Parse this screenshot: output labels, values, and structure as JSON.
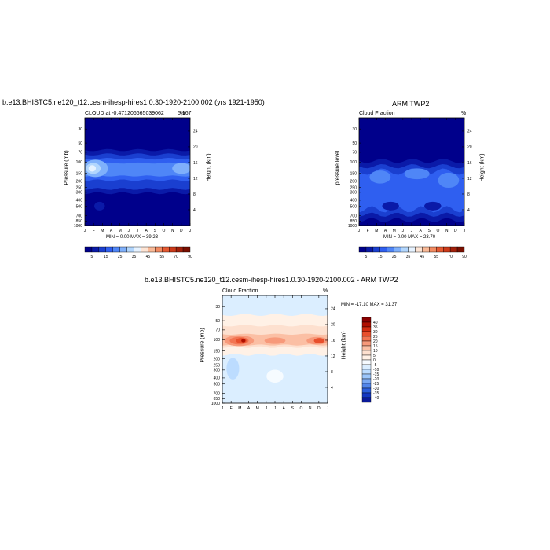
{
  "chart_data": [
    {
      "type": "heatmap",
      "title": "b.e13.BHISTC5.ne120_t12.cesm-ihesp-hires1.0.30-1920-2100.002 (yrs 1921-1950)",
      "left_label": "CLOUD at -0.471206665039062",
      "right_label": "%",
      "right_overlap_label": "5,167",
      "ylabel": "Pressure (mb)",
      "y2label": "Height (km)",
      "stats": "MIN =   0.00 MAX =  39.23",
      "x": [
        "J",
        "F",
        "M",
        "A",
        "M",
        "J",
        "J",
        "A",
        "S",
        "O",
        "N",
        "D",
        "J"
      ],
      "y_ticks": [
        30,
        50,
        70,
        100,
        150,
        200,
        250,
        300,
        400,
        500,
        700,
        850,
        1000
      ],
      "y2_ticks": [
        24,
        20,
        16,
        12,
        8,
        4
      ],
      "ylim": [
        1000,
        20
      ],
      "grid": false,
      "colorbar": "shared-bottom",
      "max": 39.23,
      "min": 0.0
    },
    {
      "type": "heatmap",
      "title": "ARM TWP2",
      "left_label": "Cloud Fraction",
      "right_label": "%",
      "ylabel": "pressure level",
      "y2label": "Height (km)",
      "stats": "MIN =   0.00 MAX =  23.70",
      "x": [
        "J",
        "F",
        "M",
        "A",
        "M",
        "J",
        "J",
        "A",
        "S",
        "O",
        "N",
        "D",
        "J"
      ],
      "y_ticks": [
        30,
        50,
        70,
        100,
        150,
        200,
        250,
        300,
        400,
        500,
        700,
        850,
        1000
      ],
      "y2_ticks": [
        24,
        20,
        16,
        12,
        8,
        4
      ],
      "ylim": [
        1000,
        20
      ],
      "grid": false,
      "max": 23.7,
      "min": 0.0
    },
    {
      "type": "heatmap",
      "title": "b.e13.BHISTC5.ne120_t12.cesm-ihesp-hires1.0.30-1920-2100.002 - ARM TWP2",
      "left_label": "Cloud Fraction",
      "right_label": "%",
      "ylabel": "Pressure (mb)",
      "y2label": "Height (km)",
      "stats": "MIN = -17.10 MAX =  31.37",
      "x": [
        "J",
        "F",
        "M",
        "A",
        "M",
        "J",
        "J",
        "A",
        "S",
        "O",
        "N",
        "D",
        "J"
      ],
      "y_ticks": [
        30,
        50,
        70,
        100,
        150,
        200,
        250,
        300,
        400,
        500,
        700,
        850,
        1000
      ],
      "y2_ticks": [
        24,
        20,
        16,
        12,
        8,
        4
      ],
      "ylim": [
        1000,
        20
      ],
      "grid": false,
      "max": 31.37,
      "min": -17.1
    }
  ],
  "colorbar_abs": {
    "labels": [
      "5",
      "15",
      "25",
      "35",
      "45",
      "55",
      "70",
      "90"
    ],
    "colors": [
      "#00008b",
      "#0a1aa8",
      "#1a3fd0",
      "#2f5ff0",
      "#4f86f7",
      "#7fb0fb",
      "#b2d6fd",
      "#e6f2ff",
      "#fde4d4",
      "#f9b997",
      "#f28b62",
      "#e55a32",
      "#cc3a1a",
      "#a3200a",
      "#7a0f00"
    ]
  },
  "colorbar_diff": {
    "labels": [
      "40",
      "35",
      "30",
      "25",
      "20",
      "15",
      "10",
      "5",
      "0",
      "-5",
      "-10",
      "-15",
      "-20",
      "-25",
      "-30",
      "-35",
      "-40"
    ],
    "colors": [
      "#8b0000",
      "#b00f00",
      "#d42c10",
      "#e84f2c",
      "#f27451",
      "#f7997a",
      "#fbbfa4",
      "#fde0cf",
      "#fff1e6",
      "#f6fbff",
      "#dbeeff",
      "#bcdcff",
      "#9cc6fb",
      "#7aa9f3",
      "#5286ea",
      "#2c5fdd",
      "#1438c2",
      "#0a1a9a"
    ]
  }
}
